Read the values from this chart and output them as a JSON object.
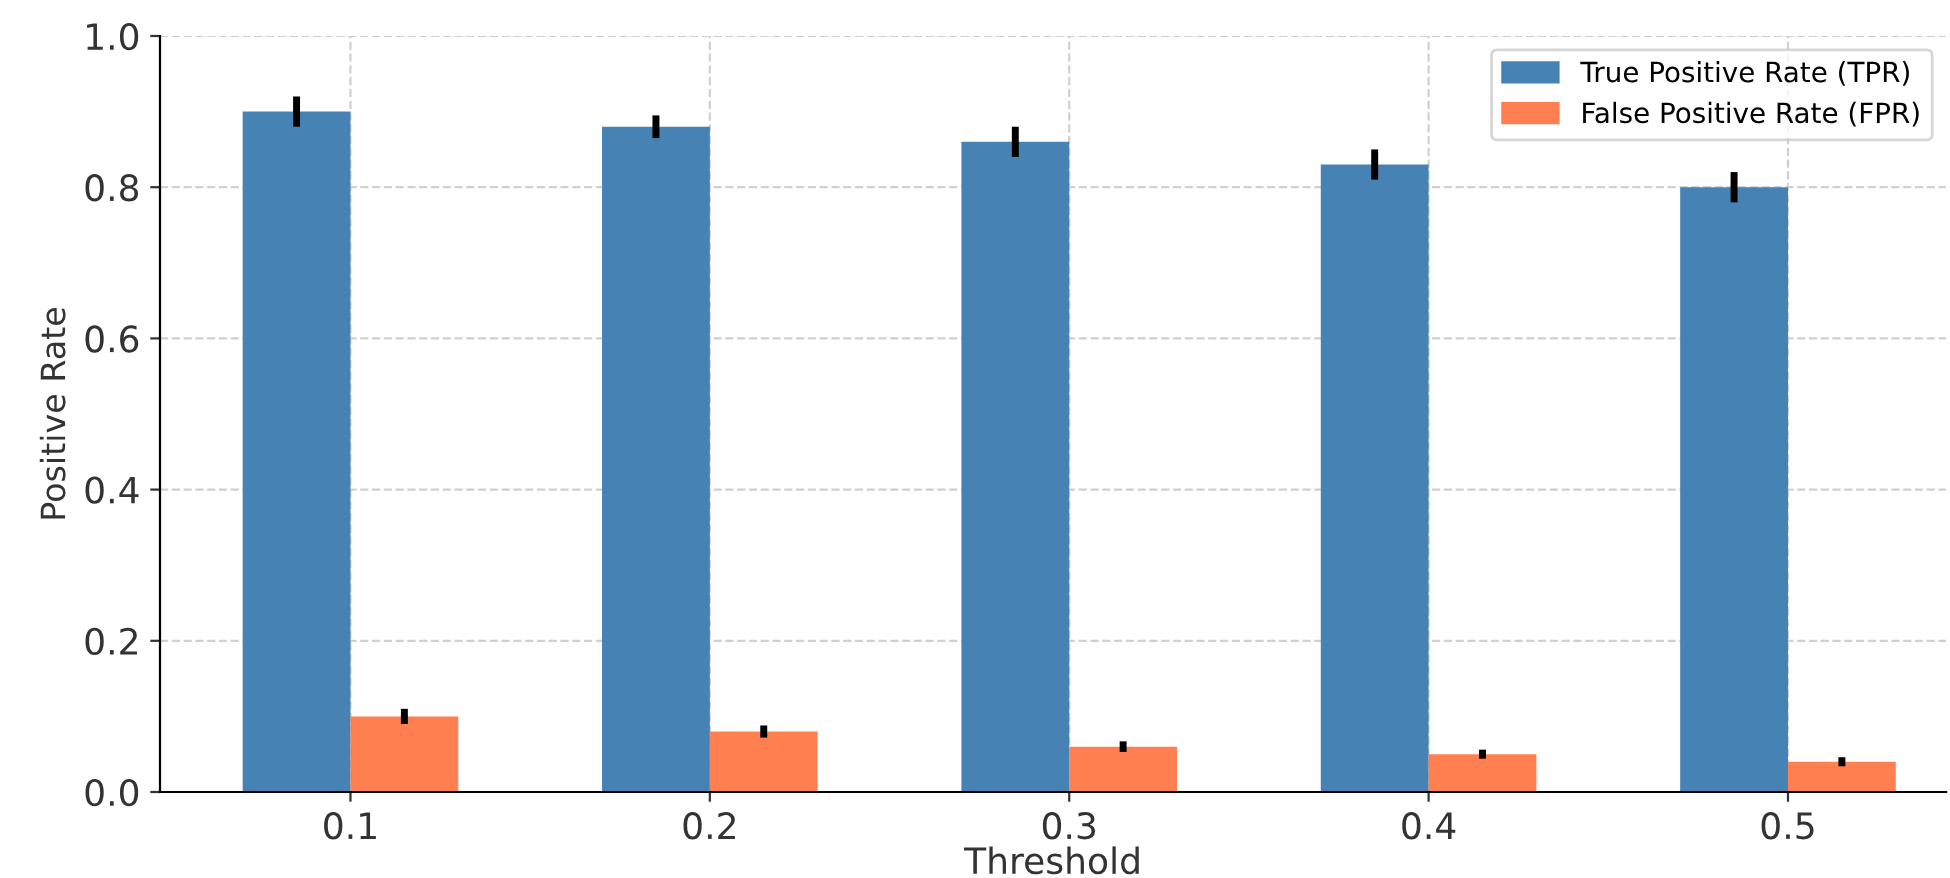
{
  "chart_data": {
    "type": "bar",
    "xlabel": "Threshold",
    "ylabel": "Positive Rate",
    "categories": [
      "0.1",
      "0.2",
      "0.3",
      "0.4",
      "0.5"
    ],
    "series": [
      {
        "name": "True Positive Rate (TPR)",
        "color": "#4682b4",
        "values": [
          0.9,
          0.88,
          0.86,
          0.83,
          0.8
        ],
        "errors": [
          0.02,
          0.015,
          0.02,
          0.02,
          0.02
        ]
      },
      {
        "name": "False Positive Rate (FPR)",
        "color": "#ff7f50",
        "values": [
          0.1,
          0.08,
          0.06,
          0.05,
          0.04
        ],
        "errors": [
          0.01,
          0.008,
          0.007,
          0.006,
          0.006
        ]
      }
    ],
    "ylim": [
      0,
      1.0
    ],
    "yticks": [
      {
        "value": 0,
        "label": "0.0"
      },
      0.2,
      0.4,
      0.6,
      0.8,
      {
        "value": 1,
        "label": "1.0"
      }
    ],
    "grid": true,
    "legend": "top right"
  }
}
